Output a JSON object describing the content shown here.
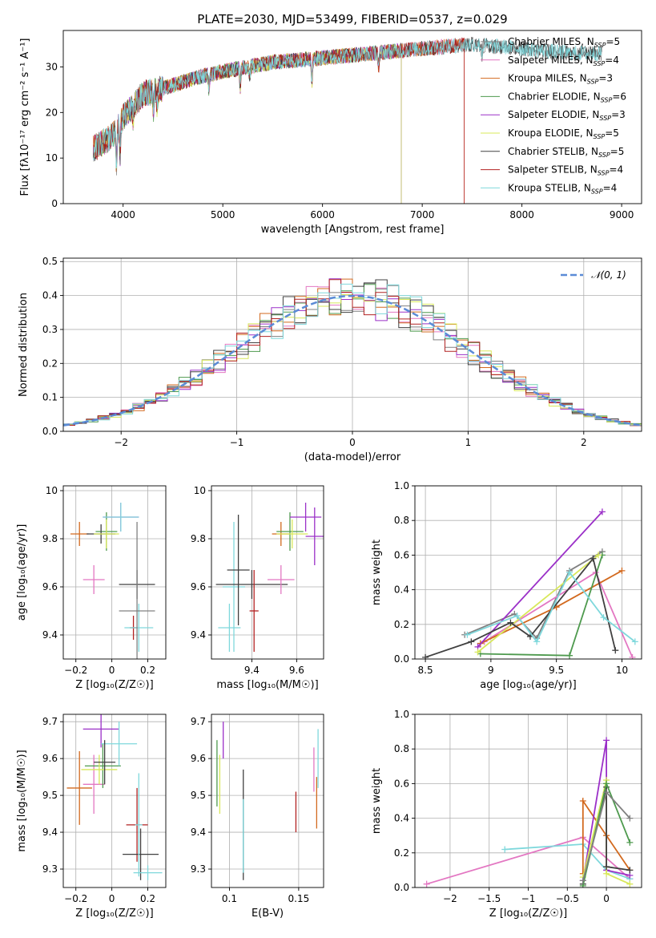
{
  "colors": [
    "#808080",
    "#e377c2",
    "#d2691e",
    "#4e9a4e",
    "#9b30c8",
    "#d8e85a",
    "#404040",
    "#b22222",
    "#7fd8dc"
  ],
  "chart_data": [
    {
      "id": "spectrum",
      "type": "line",
      "title": "PLATE=2030, MJD=53499, FIBERID=0537, z=0.029",
      "xlabel": "wavelength [Angstrom, rest frame]",
      "ylabel": "Flux [fλ10⁻¹⁷ erg cm⁻² s⁻¹ A⁻¹]",
      "xlim": [
        3400,
        9200
      ],
      "ylim": [
        0,
        38
      ],
      "xticks": [
        4000,
        5000,
        6000,
        7000,
        8000,
        9000
      ],
      "yticks": [
        0,
        10,
        20,
        30
      ],
      "continuum": [
        [
          3700,
          12
        ],
        [
          3900,
          15
        ],
        [
          4000,
          19
        ],
        [
          4200,
          24
        ],
        [
          4500,
          26
        ],
        [
          4800,
          28
        ],
        [
          5000,
          29
        ],
        [
          5500,
          31
        ],
        [
          6000,
          32
        ],
        [
          6500,
          33
        ],
        [
          7000,
          34
        ],
        [
          7500,
          35
        ],
        [
          8000,
          34
        ],
        [
          8500,
          33
        ],
        [
          8800,
          33
        ]
      ],
      "series": [
        {
          "name": "Chabrier MILES, N",
          "sub": "SSP",
          "suffix": "=5",
          "end": 8800
        },
        {
          "name": "Salpeter MILES, N",
          "sub": "SSP",
          "suffix": "=4",
          "end": 7420
        },
        {
          "name": "Kroupa MILES, N",
          "sub": "SSP",
          "suffix": "=3",
          "end": 7420
        },
        {
          "name": "Chabrier ELODIE, N",
          "sub": "SSP",
          "suffix": "=6",
          "end": 6790
        },
        {
          "name": "Salpeter ELODIE, N",
          "sub": "SSP",
          "suffix": "=3",
          "end": 6790
        },
        {
          "name": "Kroupa ELODIE, N",
          "sub": "SSP",
          "suffix": "=5",
          "end": 6790
        },
        {
          "name": "Chabrier STELIB, N",
          "sub": "SSP",
          "suffix": "=5",
          "end": 8800
        },
        {
          "name": "Salpeter STELIB, N",
          "sub": "SSP",
          "suffix": "=4",
          "end": 7420
        },
        {
          "name": "Kroupa STELIB, N",
          "sub": "SSP",
          "suffix": "=4",
          "end": 8800
        }
      ]
    },
    {
      "id": "residuals",
      "type": "histogram",
      "xlabel": "(data-model)/error",
      "ylabel": "Normed distribution",
      "xlim": [
        -2.5,
        2.5
      ],
      "ylim": [
        0,
        0.51
      ],
      "xticks": [
        -2,
        -1,
        0,
        1,
        2
      ],
      "yticks": [
        0.0,
        0.1,
        0.2,
        0.3,
        0.4,
        0.5
      ],
      "bin_width": 0.1,
      "legend": "𝒩(0, 1)",
      "reference_curve": {
        "type": "normal",
        "mean": 0,
        "sigma": 1,
        "color": "#5b8bd6"
      }
    },
    {
      "id": "age_vs_Z",
      "type": "errorbar",
      "xlabel": "Z [log₁₀(Z/Z☉)]",
      "ylabel": "age  [log₁₀(age/yr)]",
      "xlim": [
        -0.27,
        0.3
      ],
      "ylim": [
        9.3,
        10.02
      ],
      "xticks": [
        -0.2,
        0.0,
        0.2
      ],
      "yticks": [
        9.4,
        9.6,
        9.8,
        10.0
      ],
      "points": [
        {
          "x": -0.18,
          "y": 9.82,
          "xerr": 0.05,
          "yerr": 0.05,
          "c": 2
        },
        {
          "x": -0.1,
          "y": 9.63,
          "xerr": 0.06,
          "yerr": 0.06,
          "c": 1
        },
        {
          "x": -0.03,
          "y": 9.83,
          "xerr": 0.06,
          "yerr": 0.08,
          "c": 3
        },
        {
          "x": -0.06,
          "y": 9.82,
          "xerr": 0.08,
          "yerr": 0.04,
          "c": 6
        },
        {
          "x": -0.03,
          "y": 9.82,
          "xerr": 0.07,
          "yerr": 0.06,
          "c": 5
        },
        {
          "x": 0.05,
          "y": 9.89,
          "xerr": 0.1,
          "yerr": 0.06,
          "c": 4
        },
        {
          "x": 0.05,
          "y": 9.89,
          "xerr": 0.1,
          "yerr": 0.06,
          "c": 8
        },
        {
          "x": 0.14,
          "y": 9.61,
          "xerr": 0.1,
          "yerr": 0.06,
          "c": 6
        },
        {
          "x": 0.12,
          "y": 9.43,
          "xerr": 0.02,
          "yerr": 0.05,
          "c": 7
        },
        {
          "x": 0.15,
          "y": 9.43,
          "xerr": 0.08,
          "yerr": 0.1,
          "c": 8
        },
        {
          "x": 0.14,
          "y": 9.5,
          "xerr": 0.1,
          "yerr": 0.37,
          "c": 0
        }
      ]
    },
    {
      "id": "age_vs_mass",
      "type": "errorbar",
      "xlabel": "mass [log₁₀(M/M☉)]",
      "xlim": [
        9.22,
        9.72
      ],
      "ylim": [
        9.3,
        10.02
      ],
      "xticks": [
        9.4,
        9.6
      ],
      "yticks": [
        9.4,
        9.6,
        9.8,
        10.0
      ],
      "points": [
        {
          "x": 9.32,
          "y": 9.6,
          "xerr": 0.05,
          "yerr": 0.27,
          "c": 8
        },
        {
          "x": 9.34,
          "y": 9.67,
          "xerr": 0.05,
          "yerr": 0.23,
          "c": 6
        },
        {
          "x": 9.4,
          "y": 9.61,
          "xerr": 0.16,
          "yerr": 0.06,
          "c": 6
        },
        {
          "x": 9.41,
          "y": 9.5,
          "xerr": 0.02,
          "yerr": 0.17,
          "c": 7
        },
        {
          "x": 9.53,
          "y": 9.82,
          "xerr": 0.04,
          "yerr": 0.05,
          "c": 2
        },
        {
          "x": 9.53,
          "y": 9.63,
          "xerr": 0.06,
          "yerr": 0.06,
          "c": 1
        },
        {
          "x": 9.57,
          "y": 9.83,
          "xerr": 0.06,
          "yerr": 0.08,
          "c": 3
        },
        {
          "x": 9.58,
          "y": 9.82,
          "xerr": 0.07,
          "yerr": 0.06,
          "c": 5
        },
        {
          "x": 9.64,
          "y": 9.89,
          "xerr": 0.07,
          "yerr": 0.06,
          "c": 4
        },
        {
          "x": 9.68,
          "y": 9.81,
          "xerr": 0.04,
          "yerr": 0.12,
          "c": 4
        },
        {
          "x": 9.3,
          "y": 9.43,
          "xerr": 0.05,
          "yerr": 0.1,
          "c": 8
        }
      ]
    },
    {
      "id": "weight_vs_age",
      "type": "line",
      "xlabel": "age  [log₁₀(age/yr)]",
      "ylabel": "mass weight",
      "xlim": [
        8.42,
        10.15
      ],
      "ylim": [
        0,
        1.0
      ],
      "xticks": [
        8.5,
        9.0,
        9.5,
        10.0
      ],
      "yticks": [
        0.0,
        0.2,
        0.4,
        0.6,
        0.8,
        1.0
      ],
      "series": [
        {
          "c": 0,
          "x": [
            8.8,
            9.18,
            9.35,
            9.6,
            9.85
          ],
          "y": [
            0.14,
            0.26,
            0.12,
            0.51,
            0.62
          ]
        },
        {
          "c": 1,
          "x": [
            8.95,
            9.8,
            10.08
          ],
          "y": [
            0.1,
            0.5,
            0.01
          ]
        },
        {
          "c": 2,
          "x": [
            8.92,
            9.5,
            10.0
          ],
          "y": [
            0.09,
            0.3,
            0.51
          ]
        },
        {
          "c": 3,
          "x": [
            8.92,
            9.6,
            9.85
          ],
          "y": [
            0.03,
            0.02,
            0.6
          ]
        },
        {
          "c": 4,
          "x": [
            8.9,
            9.85
          ],
          "y": [
            0.07,
            0.85
          ]
        },
        {
          "c": 5,
          "x": [
            8.9,
            9.82
          ],
          "y": [
            0.04,
            0.6
          ]
        },
        {
          "c": 6,
          "x": [
            8.5,
            8.85,
            9.15,
            9.3,
            9.78,
            9.95
          ],
          "y": [
            0.01,
            0.1,
            0.21,
            0.13,
            0.58,
            0.05
          ]
        },
        {
          "c": 8,
          "x": [
            8.82,
            9.2,
            9.35,
            9.6,
            9.86,
            10.1
          ],
          "y": [
            0.14,
            0.25,
            0.1,
            0.5,
            0.24,
            0.1
          ]
        }
      ]
    },
    {
      "id": "weight_vs_Z",
      "type": "line",
      "xlabel": "Z [log₁₀(Z/Z☉)]",
      "ylabel": "mass weight",
      "xlim": [
        -2.45,
        0.45
      ],
      "ylim": [
        0,
        1.0
      ],
      "xticks": [
        -2.0,
        -1.5,
        -1.0,
        -0.5,
        0.0
      ],
      "yticks": [
        0.0,
        0.2,
        0.4,
        0.6,
        0.8,
        1.0
      ],
      "series": [
        {
          "c": 1,
          "x": [
            -2.3,
            -0.3,
            0.3
          ],
          "y": [
            0.02,
            0.29,
            0.05
          ]
        },
        {
          "c": 8,
          "x": [
            -1.3,
            -0.3,
            0.0,
            0.3
          ],
          "y": [
            0.22,
            0.25,
            0.1,
            0.05
          ]
        },
        {
          "c": 2,
          "x": [
            -0.3,
            -0.3,
            0.0,
            0.3
          ],
          "y": [
            0.08,
            0.5,
            0.3,
            0.1
          ]
        },
        {
          "c": 4,
          "x": [
            -0.3,
            0.0,
            0.0,
            0.3
          ],
          "y": [
            0.04,
            0.85,
            0.1,
            0.07
          ]
        },
        {
          "c": 5,
          "x": [
            -0.3,
            0.0,
            0.0,
            0.3
          ],
          "y": [
            0.06,
            0.62,
            0.08,
            0.02
          ]
        },
        {
          "c": 6,
          "x": [
            -0.3,
            0.0,
            0.0,
            0.3
          ],
          "y": [
            0.02,
            0.58,
            0.12,
            0.1
          ]
        },
        {
          "c": 3,
          "x": [
            -0.3,
            0.0,
            0.3
          ],
          "y": [
            0.01,
            0.6,
            0.26
          ]
        },
        {
          "c": 0,
          "x": [
            -0.3,
            0.0,
            0.3
          ],
          "y": [
            0.04,
            0.55,
            0.4
          ]
        }
      ]
    },
    {
      "id": "mass_vs_Z",
      "type": "errorbar",
      "xlabel": "Z [log₁₀(Z/Z☉)]",
      "ylabel": "mass [log₁₀(M/M☉)]",
      "xlim": [
        -0.27,
        0.3
      ],
      "ylim": [
        9.25,
        9.72
      ],
      "xticks": [
        -0.2,
        0.0,
        0.2
      ],
      "yticks": [
        9.3,
        9.4,
        9.5,
        9.6,
        9.7
      ],
      "points": [
        {
          "x": -0.18,
          "y": 9.52,
          "xerr": 0.07,
          "yerr": 0.1,
          "c": 2
        },
        {
          "x": -0.1,
          "y": 9.53,
          "xerr": 0.06,
          "yerr": 0.08,
          "c": 1
        },
        {
          "x": -0.05,
          "y": 9.58,
          "xerr": 0.1,
          "yerr": 0.06,
          "c": 3
        },
        {
          "x": -0.07,
          "y": 9.57,
          "xerr": 0.1,
          "yerr": 0.04,
          "c": 5
        },
        {
          "x": -0.06,
          "y": 9.68,
          "xerr": 0.1,
          "yerr": 0.05,
          "c": 4
        },
        {
          "x": 0.04,
          "y": 9.64,
          "xerr": 0.1,
          "yerr": 0.06,
          "c": 8
        },
        {
          "x": -0.04,
          "y": 9.59,
          "xerr": 0.06,
          "yerr": 0.06,
          "c": 6
        },
        {
          "x": 0.14,
          "y": 9.42,
          "xerr": 0.06,
          "yerr": 0.1,
          "c": 7
        },
        {
          "x": 0.16,
          "y": 9.34,
          "xerr": 0.1,
          "yerr": 0.07,
          "c": 6
        },
        {
          "x": 0.2,
          "y": 9.29,
          "xerr": 0.08,
          "yerr": 0.02,
          "c": 8
        },
        {
          "x": 0.15,
          "y": 9.42,
          "xerr": 0.02,
          "yerr": 0.14,
          "c": 8
        }
      ]
    },
    {
      "id": "mass_vs_ebv",
      "type": "errorbar",
      "xlabel": "E(B-V)",
      "xlim": [
        0.087,
        0.168
      ],
      "ylim": [
        9.25,
        9.72
      ],
      "xticks": [
        0.1,
        0.15
      ],
      "yticks": [
        9.3,
        9.4,
        9.5,
        9.6,
        9.7
      ],
      "points": [
        {
          "x": 0.091,
          "y": 9.56,
          "xerr": 0,
          "yerr": 0.09,
          "c": 3
        },
        {
          "x": 0.093,
          "y": 9.53,
          "xerr": 0,
          "yerr": 0.08,
          "c": 5
        },
        {
          "x": 0.0955,
          "y": 9.65,
          "xerr": 0,
          "yerr": 0.05,
          "c": 4
        },
        {
          "x": 0.11,
          "y": 9.42,
          "xerr": 0,
          "yerr": 0.15,
          "c": 6
        },
        {
          "x": 0.11,
          "y": 9.39,
          "xerr": 0,
          "yerr": 0.1,
          "c": 8
        },
        {
          "x": 0.148,
          "y": 9.455,
          "xerr": 0,
          "yerr": 0.055,
          "c": 7
        },
        {
          "x": 0.161,
          "y": 9.57,
          "xerr": 0,
          "yerr": 0.06,
          "c": 1
        },
        {
          "x": 0.163,
          "y": 9.48,
          "xerr": 0,
          "yerr": 0.07,
          "c": 2
        },
        {
          "x": 0.164,
          "y": 9.6,
          "xerr": 0,
          "yerr": 0.08,
          "c": 8
        }
      ]
    }
  ]
}
